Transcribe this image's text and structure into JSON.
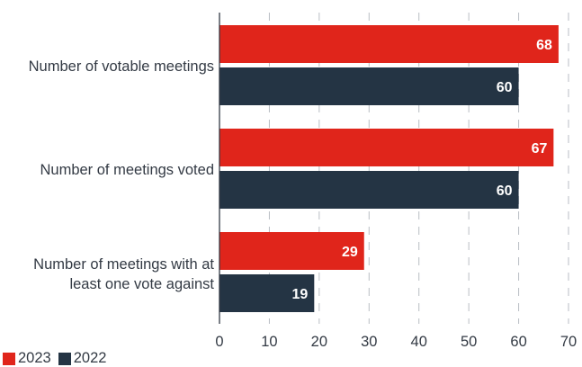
{
  "chart_data": {
    "type": "bar",
    "orientation": "horizontal",
    "categories": [
      [
        "Number of votable meetings"
      ],
      [
        "Number of meetings voted"
      ],
      [
        "Number of meetings with at",
        "least one vote against"
      ]
    ],
    "series": [
      {
        "name": "2023",
        "color": "#e0251b",
        "values": [
          68,
          67,
          29
        ]
      },
      {
        "name": "2022",
        "color": "#243444",
        "values": [
          60,
          60,
          19
        ]
      }
    ],
    "xlim": [
      0,
      70
    ],
    "xticks": [
      "0",
      "10",
      "20",
      "30",
      "40",
      "50",
      "60",
      "70"
    ],
    "grid": "vertical dashed",
    "legend_position": "bottom-left",
    "data_labels": "inside bar end, bold white"
  }
}
